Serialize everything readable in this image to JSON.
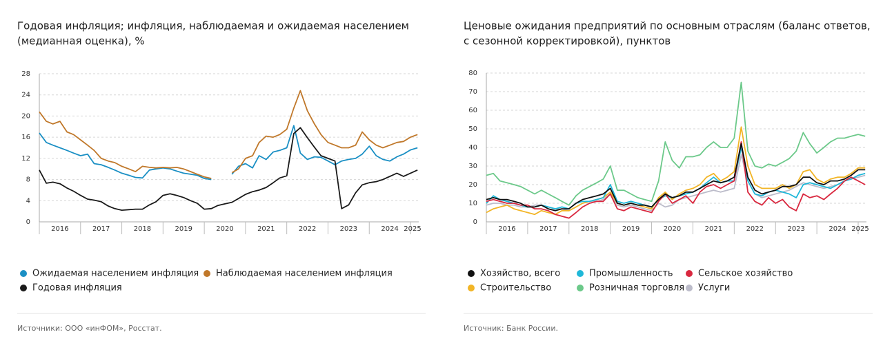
{
  "chart_data": [
    {
      "type": "line",
      "title": [
        "Годовая инфляция; инфляция, наблюдаемая и ожидаемая населением",
        "(медианная оценка), %"
      ],
      "source": "Источники: ООО «инФОМ», Росстат.",
      "x": [
        2016,
        2016.17,
        2016.33,
        2016.5,
        2016.67,
        2016.83,
        2017,
        2017.17,
        2017.33,
        2017.5,
        2017.67,
        2017.83,
        2018,
        2018.17,
        2018.33,
        2018.5,
        2018.67,
        2018.83,
        2019,
        2019.17,
        2019.33,
        2019.5,
        2019.67,
        2019.83,
        2020,
        2020.17,
        2020.33,
        2020.5,
        2020.67,
        2020.83,
        2021,
        2021.17,
        2021.33,
        2021.5,
        2021.67,
        2021.83,
        2022,
        2022.17,
        2022.33,
        2022.5,
        2022.67,
        2022.83,
        2023,
        2023.17,
        2023.33,
        2023.5,
        2023.67,
        2023.83,
        2024,
        2024.17,
        2024.33,
        2024.5,
        2024.67,
        2024.83,
        2025,
        2025.17
      ],
      "xlim": [
        2016,
        2025.2
      ],
      "xticks": [
        {
          "value": 2016.5,
          "label": "2016"
        },
        {
          "value": 2017.5,
          "label": "2017"
        },
        {
          "value": 2018.5,
          "label": "2018"
        },
        {
          "value": 2019.5,
          "label": "2019"
        },
        {
          "value": 2020.5,
          "label": "2020"
        },
        {
          "value": 2021.5,
          "label": "2021"
        },
        {
          "value": 2022.5,
          "label": "2022"
        },
        {
          "value": 2023.5,
          "label": "2023"
        },
        {
          "value": 2024.5,
          "label": "2024"
        },
        {
          "value": 2025.05,
          "label": "2025"
        }
      ],
      "ylim": [
        0,
        28
      ],
      "yticks": [
        0,
        4,
        8,
        12,
        16,
        20,
        24,
        28
      ],
      "grid": true,
      "series": [
        {
          "name": "Ожидаемая населением инфляция",
          "color": "#1a8fc4",
          "values": [
            16.8,
            15,
            14.5,
            14,
            13.5,
            13,
            12.5,
            12.8,
            11,
            10.8,
            10.3,
            9.8,
            9.2,
            8.8,
            8.4,
            8.3,
            9.8,
            10,
            10.2,
            10,
            9.6,
            9.2,
            9,
            8.8,
            8.2,
            8,
            null,
            null,
            9,
            10.5,
            11,
            10.2,
            12.5,
            11.8,
            13.2,
            13.5,
            14,
            18.2,
            13,
            11.8,
            12.3,
            12.2,
            11.5,
            10.8,
            11.5,
            11.8,
            12,
            12.8,
            14.3,
            12.5,
            11.8,
            11.5,
            12.3,
            12.8,
            13.6,
            14
          ]
        },
        {
          "name": "Наблюдаемая населением инфляция",
          "color": "#c0782a",
          "values": [
            20.8,
            19,
            18.5,
            19,
            17,
            16.5,
            15.5,
            14.5,
            13.5,
            12,
            11.5,
            11.2,
            10.5,
            10,
            9.5,
            10.5,
            10.3,
            10.2,
            10.3,
            10.2,
            10.3,
            10,
            9.5,
            9,
            8.5,
            8.2,
            null,
            null,
            9.3,
            10,
            12,
            12.5,
            15,
            16.2,
            16,
            16.5,
            17.5,
            21.5,
            24.8,
            21,
            18.5,
            16.5,
            15,
            14.5,
            14,
            14,
            14.5,
            17,
            15.5,
            14.5,
            14,
            14.5,
            15,
            15.2,
            16,
            16.5
          ]
        },
        {
          "name": "Годовая инфляция",
          "color": "#1a1a1a",
          "values": [
            9.8,
            7.3,
            7.5,
            7.2,
            6.4,
            5.8,
            5,
            4.3,
            4.1,
            3.8,
            3,
            2.5,
            2.2,
            2.3,
            2.4,
            2.4,
            3.2,
            3.8,
            5,
            5.3,
            5,
            4.6,
            4,
            3.5,
            2.4,
            2.5,
            3.1,
            3.4,
            3.7,
            4.4,
            5.2,
            5.7,
            6,
            6.5,
            7.4,
            8.3,
            8.7,
            16.7,
            17.8,
            15.9,
            14.1,
            12.5,
            12,
            11.5,
            2.5,
            3.2,
            5.5,
            7,
            7.4,
            7.6,
            8,
            8.6,
            9.2,
            8.6,
            9.2,
            9.8
          ]
        }
      ]
    },
    {
      "type": "line",
      "title": [
        "Ценовые ожидания предприятий по основным отраслям (баланс ответов,",
        "с сезонной корректировкой), пунктов"
      ],
      "source": "Источник: Банк России.",
      "x": [
        2016,
        2016.17,
        2016.33,
        2016.5,
        2016.67,
        2016.83,
        2017,
        2017.17,
        2017.33,
        2017.5,
        2017.67,
        2017.83,
        2018,
        2018.17,
        2018.33,
        2018.5,
        2018.67,
        2018.83,
        2019,
        2019.17,
        2019.33,
        2019.5,
        2019.67,
        2019.83,
        2020,
        2020.17,
        2020.33,
        2020.5,
        2020.67,
        2020.83,
        2021,
        2021.17,
        2021.33,
        2021.5,
        2021.67,
        2021.83,
        2022,
        2022.17,
        2022.33,
        2022.5,
        2022.67,
        2022.83,
        2023,
        2023.17,
        2023.33,
        2023.5,
        2023.67,
        2023.83,
        2024,
        2024.17,
        2024.33,
        2024.5,
        2024.67,
        2024.83,
        2025,
        2025.17
      ],
      "xlim": [
        2016,
        2025.2
      ],
      "xticks": [
        {
          "value": 2016.5,
          "label": "2016"
        },
        {
          "value": 2017.5,
          "label": "2017"
        },
        {
          "value": 2018.5,
          "label": "2018"
        },
        {
          "value": 2019.5,
          "label": "2019"
        },
        {
          "value": 2020.5,
          "label": "2020"
        },
        {
          "value": 2021.5,
          "label": "2021"
        },
        {
          "value": 2022.5,
          "label": "2022"
        },
        {
          "value": 2023.5,
          "label": "2023"
        },
        {
          "value": 2024.5,
          "label": "2024"
        },
        {
          "value": 2025.05,
          "label": "2025"
        }
      ],
      "ylim": [
        0,
        80
      ],
      "yticks": [
        0,
        10,
        20,
        30,
        40,
        50,
        60,
        70,
        80
      ],
      "grid": true,
      "series": [
        {
          "name": "Розничная торговля",
          "color": "#6cc98a",
          "values": [
            25,
            26,
            22,
            21,
            20,
            19,
            17,
            15,
            17,
            15,
            13,
            11,
            9,
            14,
            17,
            19,
            21,
            23,
            30,
            17,
            17,
            15,
            13,
            12,
            11,
            22,
            43,
            33,
            29,
            35,
            35,
            36,
            40,
            43,
            40,
            40,
            45,
            75,
            38,
            30,
            29,
            31,
            30,
            32,
            34,
            38,
            48,
            42,
            37,
            40,
            43,
            45,
            45,
            46,
            47,
            46
          ]
        },
        {
          "name": "Услуги",
          "color": "#bcbcca",
          "values": [
            9,
            10,
            10,
            9,
            9,
            8,
            8,
            9,
            9,
            8,
            7,
            7,
            6,
            8,
            10,
            11,
            11,
            12,
            15,
            9,
            8,
            9,
            8,
            7,
            6,
            10,
            8,
            9,
            12,
            13,
            14,
            15,
            16,
            17,
            16,
            17,
            18,
            36,
            22,
            15,
            13,
            14,
            15,
            16,
            17,
            19,
            21,
            20,
            19,
            18,
            19,
            20,
            22,
            23,
            24,
            25
          ]
        },
        {
          "name": "Строительство",
          "color": "#f2b526",
          "values": [
            5,
            7,
            8,
            9,
            7,
            6,
            5,
            4,
            6,
            5,
            4,
            6,
            6,
            8,
            10,
            11,
            12,
            13,
            16,
            10,
            9,
            10,
            9,
            8,
            7,
            13,
            16,
            12,
            15,
            17,
            18,
            20,
            24,
            26,
            22,
            24,
            27,
            51,
            30,
            20,
            18,
            18,
            18,
            20,
            18,
            20,
            27,
            28,
            23,
            21,
            23,
            24,
            24,
            26,
            29,
            29
          ]
        },
        {
          "name": "Промышленность",
          "color": "#1fb8d9",
          "values": [
            10,
            14,
            12,
            11,
            10,
            9,
            8,
            8,
            9,
            8,
            7,
            8,
            7,
            10,
            11,
            11,
            12,
            13,
            20,
            11,
            10,
            11,
            10,
            9,
            8,
            12,
            14,
            13,
            14,
            15,
            16,
            18,
            21,
            24,
            21,
            22,
            22,
            40,
            22,
            15,
            14,
            16,
            17,
            16,
            15,
            13,
            20,
            21,
            20,
            19,
            18,
            20,
            22,
            23,
            25,
            26
          ]
        },
        {
          "name": "Сельское хозяйство",
          "color": "#d9283f",
          "values": [
            11,
            12,
            11,
            10,
            10,
            9,
            9,
            7,
            7,
            6,
            4,
            3,
            2,
            5,
            8,
            10,
            11,
            11,
            15,
            7,
            6,
            8,
            7,
            6,
            5,
            11,
            15,
            10,
            12,
            14,
            10,
            16,
            19,
            20,
            18,
            20,
            22,
            43,
            16,
            11,
            9,
            13,
            10,
            12,
            8,
            6,
            15,
            13,
            14,
            12,
            15,
            18,
            22,
            24,
            22,
            20
          ]
        },
        {
          "name": "Хозяйство, всего",
          "color": "#111111",
          "values": [
            12,
            13,
            12,
            12,
            11,
            10,
            8,
            8,
            9,
            7,
            6,
            7,
            7,
            10,
            12,
            13,
            14,
            15,
            18,
            10,
            9,
            10,
            9,
            9,
            8,
            12,
            15,
            13,
            14,
            16,
            16,
            18,
            20,
            22,
            21,
            22,
            24,
            42,
            24,
            17,
            15,
            16,
            17,
            19,
            19,
            20,
            24,
            24,
            21,
            20,
            22,
            22,
            23,
            25,
            28,
            28
          ]
        }
      ]
    }
  ]
}
